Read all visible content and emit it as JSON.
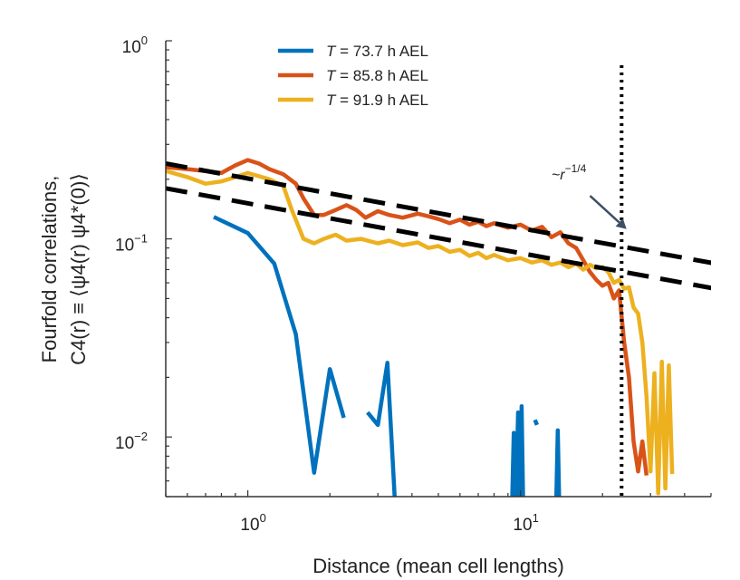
{
  "chart_data": {
    "type": "line",
    "x_scale": "log",
    "y_scale": "log",
    "xlabel": "Distance (mean cell lengths)",
    "ylabel_line1": "Fourfold correlations,",
    "ylabel_line2": "C4(r) ≡ ⟨ψ4(r) ψ4*(0)⟩",
    "xlim": [
      0.5,
      50
    ],
    "ylim": [
      0.005,
      1
    ],
    "x_ticks": [
      {
        "value": 1,
        "base": "10",
        "exp": "0"
      },
      {
        "value": 10,
        "base": "10",
        "exp": "1"
      }
    ],
    "y_ticks": [
      {
        "value": 1,
        "base": "10",
        "exp": "0"
      },
      {
        "value": 0.1,
        "base": "10",
        "exp": "−1"
      },
      {
        "value": 0.01,
        "base": "10",
        "exp": "−2"
      }
    ],
    "series": [
      {
        "name": "T = 73.7 h AEL",
        "name_var": "T",
        "name_rest": " = 73.7 h AEL",
        "color": "#0072BD",
        "segments": [
          [
            [
              0.75,
              0.129
            ],
            [
              1.0,
              0.107
            ],
            [
              1.25,
              0.075
            ],
            [
              1.5,
              0.033
            ],
            [
              1.75,
              0.0066
            ],
            [
              2.0,
              0.022
            ],
            [
              2.25,
              0.0125
            ]
          ],
          [
            [
              2.75,
              0.0133
            ],
            [
              3.0,
              0.0115
            ],
            [
              3.25,
              0.0237
            ],
            [
              3.5,
              0.0036
            ]
          ],
          [
            [
              9.3,
              0.004
            ],
            [
              9.45,
              0.0105
            ],
            [
              9.6,
              0.004
            ],
            [
              9.8,
              0.0133
            ],
            [
              9.95,
              0.004
            ],
            [
              10.1,
              0.0143
            ],
            [
              10.25,
              0.004
            ]
          ],
          [
            [
              11.3,
              0.0122
            ],
            [
              11.5,
              0.0115
            ]
          ],
          [
            [
              13.5,
              0.004
            ],
            [
              13.7,
              0.0108
            ],
            [
              13.9,
              0.004
            ]
          ]
        ]
      },
      {
        "name": "T = 85.8 h AEL",
        "name_var": "T",
        "name_rest": " = 85.8 h AEL",
        "color": "#D95319",
        "segments": [
          [
            [
              0.5,
              0.23
            ],
            [
              0.6,
              0.225
            ],
            [
              0.7,
              0.22
            ],
            [
              0.8,
              0.215
            ],
            [
              0.9,
              0.235
            ],
            [
              1.0,
              0.25
            ],
            [
              1.1,
              0.24
            ],
            [
              1.2,
              0.225
            ],
            [
              1.35,
              0.212
            ],
            [
              1.5,
              0.19
            ],
            [
              1.6,
              0.16
            ],
            [
              1.75,
              0.132
            ],
            [
              1.9,
              0.132
            ],
            [
              2.1,
              0.14
            ],
            [
              2.3,
              0.148
            ],
            [
              2.5,
              0.14
            ],
            [
              2.7,
              0.128
            ],
            [
              3.0,
              0.138
            ],
            [
              3.3,
              0.132
            ],
            [
              3.7,
              0.128
            ],
            [
              4.2,
              0.134
            ],
            [
              4.6,
              0.13
            ],
            [
              5.0,
              0.126
            ],
            [
              5.5,
              0.12
            ],
            [
              6.0,
              0.125
            ],
            [
              6.5,
              0.118
            ],
            [
              7.0,
              0.122
            ],
            [
              7.5,
              0.116
            ],
            [
              8.0,
              0.12
            ],
            [
              9.0,
              0.114
            ],
            [
              10.0,
              0.118
            ],
            [
              11.0,
              0.11
            ],
            [
              12.0,
              0.115
            ],
            [
              13.0,
              0.102
            ],
            [
              14.0,
              0.108
            ],
            [
              15.0,
              0.095
            ],
            [
              16.0,
              0.09
            ],
            [
              17.0,
              0.078
            ],
            [
              18.0,
              0.068
            ],
            [
              19.0,
              0.062
            ],
            [
              20.0,
              0.058
            ],
            [
              21.0,
              0.06
            ],
            [
              22.0,
              0.05
            ],
            [
              23.0,
              0.055
            ],
            [
              24.0,
              0.03
            ],
            [
              25.0,
              0.02
            ],
            [
              26.0,
              0.0095
            ],
            [
              27.0,
              0.0067
            ],
            [
              28.0,
              0.0095
            ],
            [
              29.0,
              0.0064
            ]
          ]
        ]
      },
      {
        "name": "T = 91.9 h AEL",
        "name_var": "T",
        "name_rest": " = 91.9 h AEL",
        "color": "#EDB120",
        "segments": [
          [
            [
              0.5,
              0.22
            ],
            [
              0.6,
              0.205
            ],
            [
              0.7,
              0.19
            ],
            [
              0.8,
              0.195
            ],
            [
              0.9,
              0.205
            ],
            [
              1.0,
              0.215
            ],
            [
              1.2,
              0.2
            ],
            [
              1.35,
              0.185
            ],
            [
              1.45,
              0.14
            ],
            [
              1.6,
              0.1
            ],
            [
              1.75,
              0.095
            ],
            [
              1.9,
              0.1
            ],
            [
              2.1,
              0.105
            ],
            [
              2.3,
              0.098
            ],
            [
              2.6,
              0.1
            ],
            [
              3.0,
              0.095
            ],
            [
              3.3,
              0.098
            ],
            [
              3.7,
              0.093
            ],
            [
              4.2,
              0.096
            ],
            [
              4.6,
              0.09
            ],
            [
              5.0,
              0.092
            ],
            [
              5.5,
              0.086
            ],
            [
              6.0,
              0.088
            ],
            [
              6.5,
              0.082
            ],
            [
              7.0,
              0.085
            ],
            [
              7.5,
              0.08
            ],
            [
              8.0,
              0.083
            ],
            [
              9.0,
              0.078
            ],
            [
              10.0,
              0.08
            ],
            [
              11.0,
              0.076
            ],
            [
              12.0,
              0.078
            ],
            [
              13.0,
              0.074
            ],
            [
              14.0,
              0.076
            ],
            [
              15.0,
              0.072
            ],
            [
              16.0,
              0.075
            ],
            [
              17.0,
              0.07
            ],
            [
              18.0,
              0.074
            ],
            [
              19.0,
              0.071
            ],
            [
              20.0,
              0.072
            ],
            [
              21.0,
              0.068
            ],
            [
              22.0,
              0.06
            ],
            [
              23.0,
              0.062
            ],
            [
              24.0,
              0.056
            ],
            [
              25.0,
              0.057
            ],
            [
              26.0,
              0.045
            ],
            [
              27.0,
              0.042
            ],
            [
              28.0,
              0.03
            ],
            [
              29.0,
              0.016
            ],
            [
              30.0,
              0.0067
            ],
            [
              31.0,
              0.021
            ],
            [
              32.0,
              0.0052
            ],
            [
              33.0,
              0.024
            ],
            [
              34.0,
              0.0055
            ],
            [
              35.0,
              0.023
            ],
            [
              36.0,
              0.0065
            ]
          ]
        ]
      }
    ],
    "reference_lines": [
      {
        "label": "~r−1/4 upper",
        "x": [
          0.5,
          52
        ],
        "y": [
          0.24,
          0.075
        ]
      },
      {
        "label": "~r−1/4 lower",
        "x": [
          0.5,
          52
        ],
        "y": [
          0.18,
          0.056
        ]
      }
    ],
    "vertical_line": {
      "x": 23.5,
      "style": "dotted"
    },
    "annotation": {
      "text_prefix": "~r",
      "text_sup": "−1/4",
      "arrow_from": [
        18.0,
        0.165
      ],
      "arrow_to": [
        24.5,
        0.112
      ],
      "text_at": [
        13.0,
        0.2
      ]
    }
  }
}
